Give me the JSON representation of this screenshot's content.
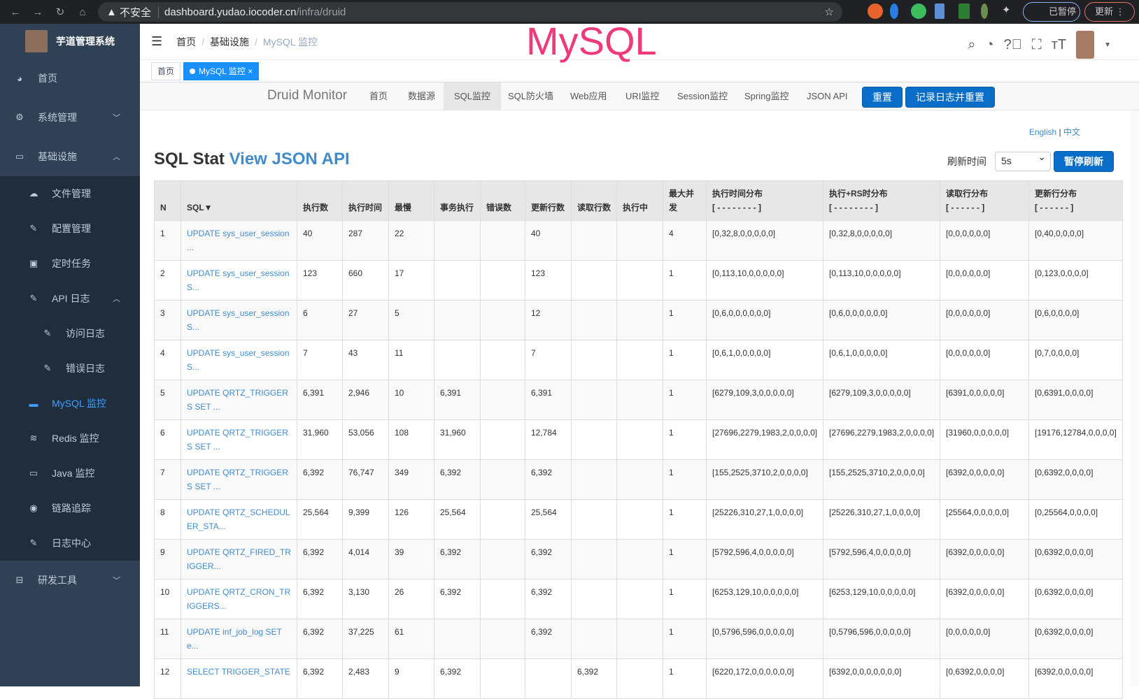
{
  "browser": {
    "security": "不安全",
    "host": "dashboard.yudao.iocoder.cn",
    "path": "/infra/druid",
    "paused": "已暂停",
    "update": "更新"
  },
  "sidebar": {
    "title": "芋道管理系统",
    "items": [
      {
        "label": "首页",
        "icon": "dashboard-icon"
      },
      {
        "label": "系统管理",
        "icon": "gear-icon"
      },
      {
        "label": "基础设施",
        "icon": "monitor-icon"
      },
      {
        "label": "文件管理",
        "icon": "upload-icon"
      },
      {
        "label": "配置管理",
        "icon": "edit-icon"
      },
      {
        "label": "定时任务",
        "icon": "job-icon"
      },
      {
        "label": "API 日志",
        "icon": "edit-icon"
      },
      {
        "label": "访问日志",
        "icon": "edit-icon"
      },
      {
        "label": "错误日志",
        "icon": "edit-icon"
      },
      {
        "label": "MySQL 监控",
        "icon": "database-icon"
      },
      {
        "label": "Redis 监控",
        "icon": "redis-icon"
      },
      {
        "label": "Java 监控",
        "icon": "server-icon"
      },
      {
        "label": "链路追踪",
        "icon": "eye-icon"
      },
      {
        "label": "日志中心",
        "icon": "edit-icon"
      },
      {
        "label": "研发工具",
        "icon": "toolbox-icon"
      }
    ]
  },
  "navbar": {
    "breadcrumb": [
      "首页",
      "基础设施",
      "MySQL 监控"
    ],
    "overlay": "MySQL"
  },
  "tags": [
    "首页",
    "MySQL 监控"
  ],
  "druid": {
    "brand": "Druid Monitor",
    "nav": [
      "首页",
      "数据源",
      "SQL监控",
      "SQL防火墙",
      "Web应用",
      "URI监控",
      "Session监控",
      "Spring监控",
      "JSON API"
    ],
    "reset": "重置",
    "log_reset": "记录日志并重置"
  },
  "lang": {
    "en": "English",
    "zh": "中文"
  },
  "page": {
    "title": "SQL Stat",
    "link": "View JSON API",
    "refresh_label": "刷新时间",
    "refresh_value": "5s",
    "pause": "暂停刷新"
  },
  "table": {
    "headers": [
      "N",
      "SQL▼",
      "执行数",
      "执行时间",
      "最慢",
      "事务执行",
      "错误数",
      "更新行数",
      "读取行数",
      "执行中",
      "最大并发",
      "执行时间分布\n[ - - - - - - - - ]",
      "执行+RS时分布\n[ - - - - - - - - ]",
      "读取行分布\n[ - - - - - - ]",
      "更新行分布\n[ - - - - - - ]"
    ],
    "rows": [
      [
        "1",
        "UPDATE sys_user_session ...",
        "40",
        "287",
        "22",
        "",
        "",
        "40",
        "",
        "",
        "4",
        "[0,32,8,0,0,0,0,0]",
        "[0,32,8,0,0,0,0,0]",
        "[0,0,0,0,0,0]",
        "[0,40,0,0,0,0]"
      ],
      [
        "2",
        "UPDATE sys_user_session S...",
        "123",
        "660",
        "17",
        "",
        "",
        "123",
        "",
        "",
        "1",
        "[0,113,10,0,0,0,0,0]",
        "[0,113,10,0,0,0,0,0]",
        "[0,0,0,0,0,0]",
        "[0,123,0,0,0,0]"
      ],
      [
        "3",
        "UPDATE sys_user_session S...",
        "6",
        "27",
        "5",
        "",
        "",
        "12",
        "",
        "",
        "1",
        "[0,6,0,0,0,0,0,0]",
        "[0,6,0,0,0,0,0,0]",
        "[0,0,0,0,0,0]",
        "[0,6,0,0,0,0]"
      ],
      [
        "4",
        "UPDATE sys_user_session S...",
        "7",
        "43",
        "11",
        "",
        "",
        "7",
        "",
        "",
        "1",
        "[0,6,1,0,0,0,0,0]",
        "[0,6,1,0,0,0,0,0]",
        "[0,0,0,0,0,0]",
        "[0,7,0,0,0,0]"
      ],
      [
        "5",
        "UPDATE QRTZ_TRIGGERS SET ...",
        "6,391",
        "2,946",
        "10",
        "6,391",
        "",
        "6,391",
        "",
        "",
        "1",
        "[6279,109,3,0,0,0,0,0]",
        "[6279,109,3,0,0,0,0,0]",
        "[6391,0,0,0,0,0]",
        "[0,6391,0,0,0,0]"
      ],
      [
        "6",
        "UPDATE QRTZ_TRIGGERS SET ...",
        "31,960",
        "53,056",
        "108",
        "31,960",
        "",
        "12,784",
        "",
        "",
        "1",
        "[27696,2279,1983,2,0,0,0,0]",
        "[27696,2279,1983,2,0,0,0,0]",
        "[31960,0,0,0,0,0]",
        "[19176,12784,0,0,0,0]"
      ],
      [
        "7",
        "UPDATE QRTZ_TRIGGERS SET ...",
        "6,392",
        "76,747",
        "349",
        "6,392",
        "",
        "6,392",
        "",
        "",
        "1",
        "[155,2525,3710,2,0,0,0,0]",
        "[155,2525,3710,2,0,0,0,0]",
        "[6392,0,0,0,0,0]",
        "[0,6392,0,0,0,0]"
      ],
      [
        "8",
        "UPDATE QRTZ_SCHEDULER_STA...",
        "25,564",
        "9,399",
        "126",
        "25,564",
        "",
        "25,564",
        "",
        "",
        "1",
        "[25226,310,27,1,0,0,0,0]",
        "[25226,310,27,1,0,0,0,0]",
        "[25564,0,0,0,0,0]",
        "[0,25564,0,0,0,0]"
      ],
      [
        "9",
        "UPDATE QRTZ_FIRED_TRIGGER...",
        "6,392",
        "4,014",
        "39",
        "6,392",
        "",
        "6,392",
        "",
        "",
        "1",
        "[5792,596,4,0,0,0,0,0]",
        "[5792,596,4,0,0,0,0,0]",
        "[6392,0,0,0,0,0]",
        "[0,6392,0,0,0,0]"
      ],
      [
        "10",
        "UPDATE QRTZ_CRON_TRIGGERS...",
        "6,392",
        "3,130",
        "26",
        "6,392",
        "",
        "6,392",
        "",
        "",
        "1",
        "[6253,129,10,0,0,0,0,0]",
        "[6253,129,10,0,0,0,0,0]",
        "[6392,0,0,0,0,0]",
        "[0,6392,0,0,0,0]"
      ],
      [
        "11",
        "UPDATE inf_job_log SET e...",
        "6,392",
        "37,225",
        "61",
        "",
        "",
        "6,392",
        "",
        "",
        "1",
        "[0,5796,596,0,0,0,0,0]",
        "[0,5796,596,0,0,0,0,0]",
        "[0,0,0,0,0,0]",
        "[0,6392,0,0,0,0]"
      ],
      [
        "12",
        "SELECT TRIGGER_STATE",
        "6,392",
        "2,483",
        "9",
        "6,392",
        "",
        "",
        "6,392",
        "",
        "1",
        "[6220,172,0,0,0,0,0,0]",
        "[6392,0,0,0,0,0,0,0]",
        "[0,6392,0,0,0,0]",
        "[6392,0,0,0,0,0]"
      ]
    ]
  }
}
